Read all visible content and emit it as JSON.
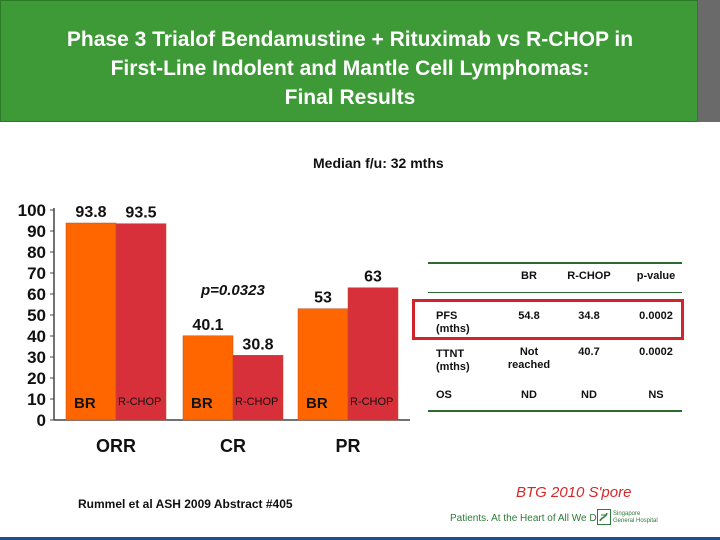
{
  "slide": {
    "title_lines": [
      "Phase 3 Trialof Bendamustine + Rituximab vs R-CHOP in",
      "First-Line Indolent and Mantle Cell Lymphomas:",
      "Final Results"
    ],
    "median_followup": "Median f/u: 32 mths",
    "citation": "Rummel et al ASH 2009 Abstract #405",
    "btg": "BTG 2010 S'pore",
    "footer_tagline": "Patients. At the Heart of All We Do.",
    "hospital_lines": [
      "Singapore",
      "General Hospital"
    ]
  },
  "colors": {
    "banner": "#3e9a36",
    "br": "#ff6600",
    "rchop": "#d8303a",
    "highlight_box": "#d1242a",
    "table_rule": "#2d6b2d"
  },
  "chart_data": {
    "type": "bar",
    "categories": [
      "ORR",
      "CR",
      "PR"
    ],
    "series": [
      {
        "name": "BR",
        "values": [
          93.8,
          40.1,
          53
        ]
      },
      {
        "name": "R-CHOP",
        "values": [
          93.5,
          30.8,
          63
        ]
      }
    ],
    "value_labels": [
      [
        "93.8",
        "40.1",
        "53"
      ],
      [
        "93.5",
        "30.8",
        "63"
      ]
    ],
    "ylim": [
      0,
      100
    ],
    "yticks": [
      0,
      10,
      20,
      30,
      40,
      50,
      60,
      70,
      80,
      90,
      100
    ],
    "annotation": "p=0.0323",
    "grid": false,
    "legend": "series names printed inside the bars"
  },
  "table": {
    "headers": [
      "",
      "BR",
      "R-CHOP",
      "p-value"
    ],
    "rows": [
      {
        "label": [
          "PFS",
          "(mths)"
        ],
        "br": [
          "54.8"
        ],
        "rchop": [
          "34.8"
        ],
        "p": [
          "0.0002"
        ],
        "highlight": true
      },
      {
        "label": [
          "TTNT",
          "(mths)"
        ],
        "br": [
          "Not",
          "reached"
        ],
        "rchop": [
          "40.7"
        ],
        "p": [
          "0.0002"
        ],
        "highlight": false
      },
      {
        "label": [
          "OS"
        ],
        "br": [
          "ND"
        ],
        "rchop": [
          "ND"
        ],
        "p": [
          "NS"
        ],
        "highlight": false
      }
    ]
  }
}
